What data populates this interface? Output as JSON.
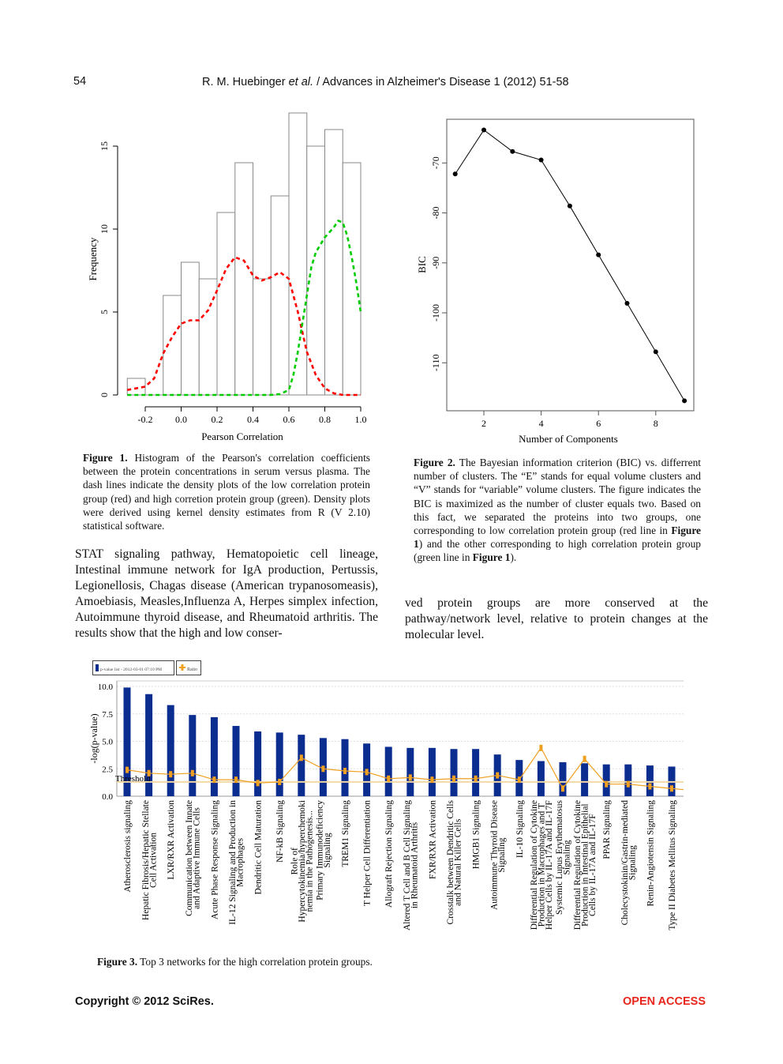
{
  "header": {
    "page_number": "54",
    "running_head_authors": "R. M. Huebinger ",
    "running_head_etal": "et al.",
    "running_head_journal": " / Advances in Alzheimer's Disease 1 (2012) 51-58"
  },
  "figure1": {
    "caption_label": "Figure 1.",
    "caption_text": " Histogram of the Pearson's correlation coefficients between the protein concentrations in serum versus plasma. The dash lines indicate the density plots of the low correlation protein group (red) and high corretion protein group (green). Density plots were derived using kernel density estimates from R (V 2.10) statistical software."
  },
  "figure2": {
    "caption_label": "Figure 2.",
    "caption_text_1": " The Bayesian information criterion (BIC) vs. differrent number of clusters. The “E” stands for equal volume clusters and “V” stands for “variable” volume clusters. The figure indicates the BIC is maximized as the number of cluster equals two. Based on this fact, we separated the proteins into two groups, one corresponding to low correlation protein group (red line in ",
    "caption_ref_1": "Figure 1",
    "caption_text_2": ") and the other corresponding to high correlation protein group (green line in ",
    "caption_ref_2": "Figure 1",
    "caption_text_3": ")."
  },
  "body": {
    "left_paragraph": "STAT signaling pathway, Hematopoietic cell lineage, Intestinal immune network for IgA production, Pertussis, Legionellosis, Chagas disease (American trypanosomeasis), Amoebiasis, Measles,Influenza A, Herpes simplex infection, Autoimmune thyroid disease, and Rheumatoid arthritis. The results show that the high and low conser-",
    "right_paragraph": "ved protein groups are more conserved at the pathway/network level, relative to protein changes at the molecular level."
  },
  "figure3": {
    "caption_label": "Figure 3.",
    "caption_text": " Top 3 networks for the high correlation protein groups."
  },
  "footer": {
    "copyright": "Copyright © 2012 SciRes.",
    "open_access": "OPEN ACCESS"
  },
  "colors": {
    "red_density": "#ff0000",
    "green_density": "#00cc00",
    "bar_blue": "#0a2d8f",
    "ratio_orange": "#f0a020",
    "open_access": "#e8261c"
  },
  "chart_data": [
    {
      "type": "bar",
      "subtype": "histogram",
      "xlabel": "Pearson Correlation",
      "ylabel": "Frequency",
      "bin_edges": [
        -0.3,
        -0.2,
        -0.1,
        0.0,
        0.1,
        0.2,
        0.3,
        0.4,
        0.5,
        0.6,
        0.7,
        0.8,
        0.9,
        1.0
      ],
      "values": [
        1,
        0,
        6,
        8,
        7,
        11,
        14,
        7,
        12,
        17,
        15,
        16,
        14
      ],
      "x_ticks": [
        "-0.2",
        "0.0",
        "0.2",
        "0.4",
        "0.6",
        "0.8",
        "1.0"
      ],
      "y_ticks": [
        "0",
        "5",
        "10",
        "15"
      ],
      "xlim": [
        -0.3,
        1.0
      ],
      "ylim": [
        0,
        17
      ],
      "density_curves": [
        {
          "color": "red",
          "style": "dashed",
          "x": [
            -0.3,
            -0.2,
            -0.15,
            -0.1,
            -0.05,
            0.0,
            0.05,
            0.1,
            0.15,
            0.2,
            0.25,
            0.3,
            0.35,
            0.4,
            0.45,
            0.5,
            0.55,
            0.6,
            0.65,
            0.7,
            0.75,
            0.8,
            0.85,
            0.9,
            0.95,
            1.0
          ],
          "y": [
            0.3,
            0.5,
            1.0,
            2.5,
            3.5,
            4.3,
            4.5,
            4.5,
            5.1,
            6.3,
            7.6,
            8.3,
            8.1,
            7.2,
            6.9,
            7.1,
            7.4,
            7.0,
            5.0,
            2.6,
            1.2,
            0.4,
            0.1,
            0.0,
            0.0,
            0.0
          ]
        },
        {
          "color": "green",
          "style": "dashed",
          "x": [
            -0.3,
            0.5,
            0.55,
            0.6,
            0.625,
            0.65,
            0.675,
            0.7,
            0.725,
            0.75,
            0.8,
            0.85,
            0.875,
            0.9,
            0.925,
            0.95,
            0.975,
            1.0
          ],
          "y": [
            0,
            0,
            0.05,
            0.3,
            1.2,
            2.6,
            4.3,
            6.0,
            7.7,
            8.6,
            9.5,
            10.1,
            10.5,
            10.4,
            9.6,
            8.3,
            6.8,
            5.0
          ]
        }
      ]
    },
    {
      "type": "line",
      "xlabel": "Number of Components",
      "ylabel": "BIC",
      "x": [
        1,
        2,
        3,
        4,
        5,
        6,
        7,
        8,
        9
      ],
      "y": [
        -72.2,
        -63.4,
        -67.7,
        -69.4,
        -78.6,
        -88.4,
        -98.1,
        -107.8,
        -117.6
      ],
      "x_ticks": [
        "2",
        "4",
        "6",
        "8"
      ],
      "y_ticks": [
        "-70",
        "-80",
        "-90",
        "-100",
        "-110"
      ],
      "xlim": [
        0.3,
        9.3
      ],
      "ylim": [
        -119,
        -61
      ]
    },
    {
      "type": "bar",
      "ylabel": "-log(p-value)",
      "y_ticks": [
        "0.0",
        "2.5",
        "5.0",
        "7.5",
        "10.0"
      ],
      "ylim": [
        0,
        10
      ],
      "threshold": 1.3,
      "threshold_label": "Threshold",
      "legend": [
        "p-value list - 2012-03-01 07:10 PM",
        "Ratio"
      ],
      "legend_position": "top-left",
      "categories": [
        [
          "Atherosclerosis signaling"
        ],
        [
          "Hepatic Fibrosis/Hepatic Stellate",
          "Cell Activation"
        ],
        [
          "LXR/RXR Activation"
        ],
        [
          "Communication between Innate",
          "and Adaptive Immune Cells"
        ],
        [
          "Acute Phase Response Signaling"
        ],
        [
          "IL-12 Signaling and Production in",
          "Macrophages"
        ],
        [
          "Dendritic Cell Maturation"
        ],
        [
          "NF-kB Signaling"
        ],
        [
          "Role of",
          "Hypercytokinemia/hyperchemoki",
          "nemia in the Pathogenesis..."
        ],
        [
          "Primary Immunodeficiency",
          "Signaling"
        ],
        [
          "TREM1 Signaling"
        ],
        [
          "T Helper Cell Differentiation"
        ],
        [
          "Allograft Rejection Signaling"
        ],
        [
          "Altered T Cell and B Cell Signaling",
          "in Rheumatoid Arthritis"
        ],
        [
          "FXR/RXR Activation"
        ],
        [
          "Crosstalk between Dendritic Cells",
          "and Natural Killer Cells"
        ],
        [
          "HMGB1 Signaling"
        ],
        [
          "Autoimmune Thyroid Disease",
          "Signaling"
        ],
        [
          "IL-10 Signaling"
        ],
        [
          "Differential Regulation of Cytokine",
          "Production in Macrophages and T",
          "Helper Cells by IL-17A and IL-17F"
        ],
        [
          "Systemic Lupus Erythematosus",
          "Signaling"
        ],
        [
          "Differential Regulation of Cytokine",
          "Production in Intestinal Epithelial",
          "Cells by IL-17A and IL-17F"
        ],
        [
          "PPAR Signaling"
        ],
        [
          "Cholecystokinin/Gastrin-mediated",
          "Signaling"
        ],
        [
          "Renin-Angiotensin Signaling"
        ],
        [
          "Type II Diabetes Mellitus Signaling"
        ]
      ],
      "series": [
        {
          "name": "p-value list - 2012-03-01 07:10 PM",
          "type": "bar",
          "values": [
            9.9,
            9.3,
            8.3,
            7.4,
            7.2,
            6.4,
            5.9,
            5.8,
            5.6,
            5.3,
            5.2,
            4.8,
            4.5,
            4.4,
            4.4,
            4.3,
            4.3,
            3.8,
            3.3,
            3.2,
            3.1,
            3.0,
            2.9,
            2.9,
            2.8,
            2.7
          ]
        },
        {
          "name": "Ratio",
          "type": "line",
          "values": [
            2.4,
            2.1,
            2.0,
            2.1,
            1.5,
            1.5,
            1.2,
            1.3,
            3.5,
            2.5,
            2.3,
            2.2,
            1.6,
            1.7,
            1.5,
            1.6,
            1.6,
            1.9,
            1.5,
            4.4,
            0.7,
            3.4,
            1.1,
            1.1,
            0.9,
            0.7
          ]
        }
      ]
    }
  ]
}
